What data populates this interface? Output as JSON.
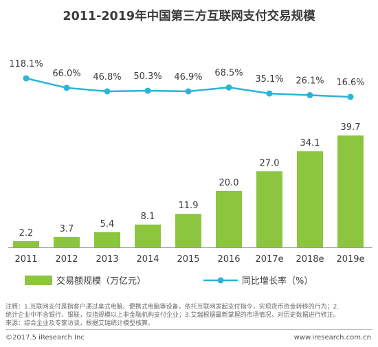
{
  "chart_data": {
    "type": "bar+line",
    "title": "2011-2019年中国第三方互联网支付交易规模",
    "categories": [
      "2011",
      "2012",
      "2013",
      "2014",
      "2015",
      "2016",
      "2017e",
      "2018e",
      "2019e"
    ],
    "series": [
      {
        "name": "交易额规模（万亿元）",
        "type": "bar",
        "color": "#8cc63f",
        "values": [
          2.2,
          3.7,
          5.4,
          8.1,
          11.9,
          20.0,
          27.0,
          34.1,
          39.7
        ],
        "labels": [
          "2.2",
          "3.7",
          "5.4",
          "8.1",
          "11.9",
          "20.0",
          "27.0",
          "34.1",
          "39.7"
        ]
      },
      {
        "name": "同比增长率（%）",
        "type": "line",
        "color": "#29b5d8",
        "values": [
          118.1,
          66.0,
          46.8,
          50.3,
          46.9,
          68.5,
          35.1,
          26.1,
          16.6
        ],
        "labels": [
          "118.1%",
          "66.0%",
          "46.8%",
          "50.3%",
          "46.9%",
          "68.5%",
          "35.1%",
          "26.1%",
          "16.6%"
        ]
      }
    ],
    "legend_position": "bottom",
    "grid": false
  },
  "notes": {
    "line1": "注释：1.互联网支付是指客户通过桌式电脑、便携式电脑等设备，依托互联网发起支付指令，实现货币资金转移的行为；2.",
    "line2": "统计企业中不含银行、银联，仅指规模以上非金融机构支付企业；3.艾瑞根据最新掌握的市场情况，对历史数据进行修正。",
    "line3": "来源：综合企业及专家访谈，根据艾瑞统计模型核算。"
  },
  "footer": {
    "copyright": "©2017.5 iResearch Inc",
    "website": "www.iresearch.com.cn"
  }
}
